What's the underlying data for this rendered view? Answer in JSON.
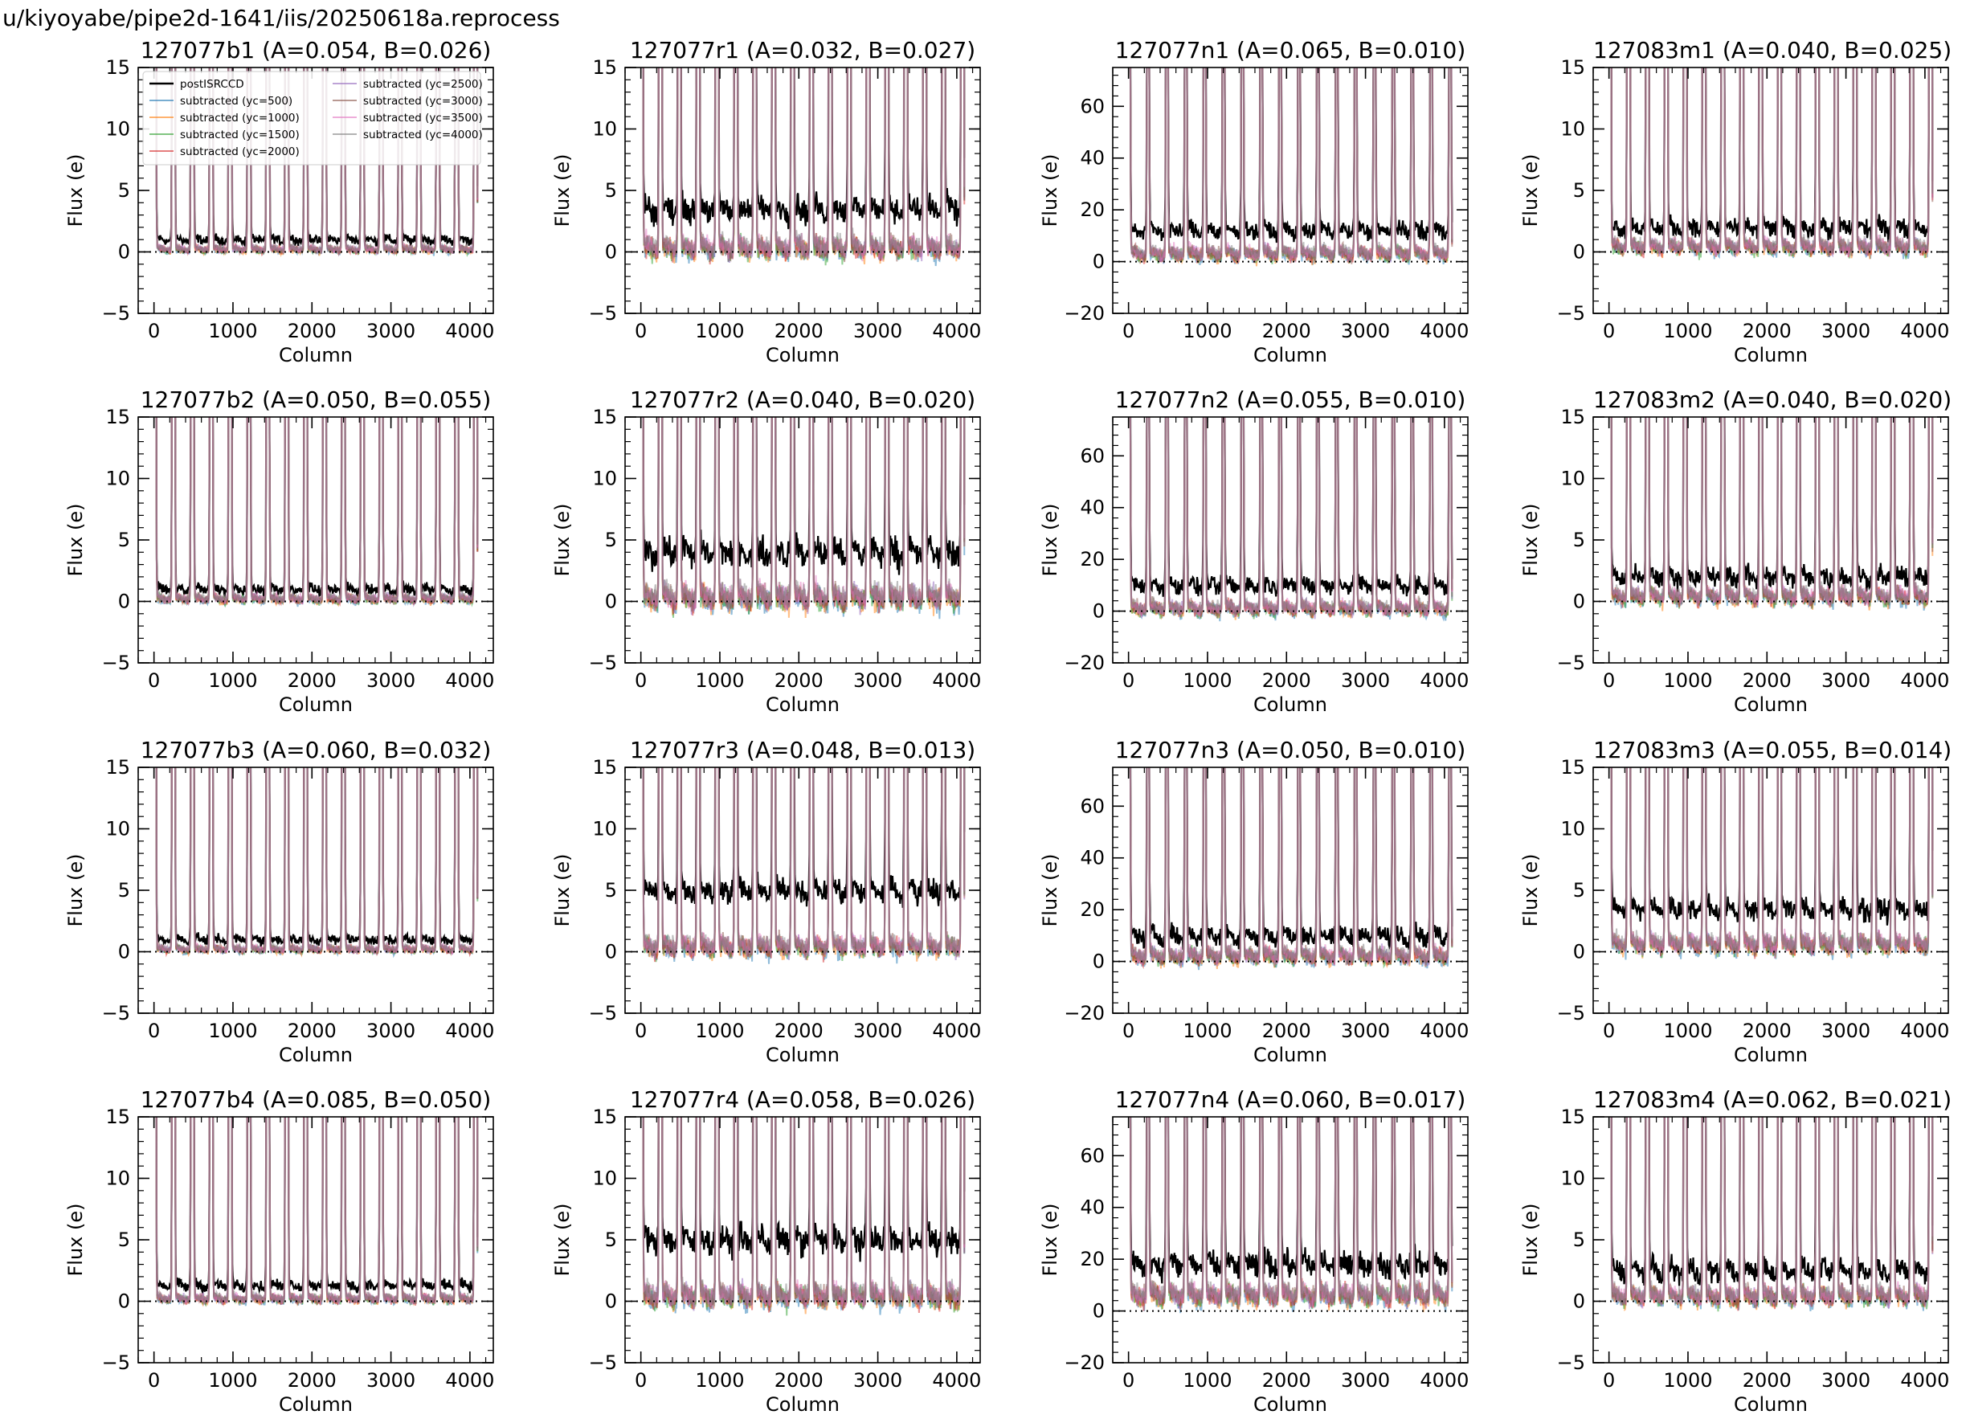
{
  "suptitle": "u/kiyoyabe/pipe2d-1641/iis/20250618a.reprocess",
  "common": {
    "xlabel": "Column",
    "ylabel": "Flux (e)",
    "xticks": [
      0,
      1000,
      2000,
      3000,
      4000
    ],
    "xlim": [
      -200,
      4296
    ]
  },
  "legend": {
    "placement": "upper-left",
    "entries": [
      {
        "label": "postISRCCD",
        "color": "#000000"
      },
      {
        "label": "subtracted (yc=500)",
        "color": "#1f77b4"
      },
      {
        "label": "subtracted (yc=1000)",
        "color": "#ff7f0e"
      },
      {
        "label": "subtracted (yc=1500)",
        "color": "#2ca02c"
      },
      {
        "label": "subtracted (yc=2000)",
        "color": "#d62728"
      },
      {
        "label": "subtracted (yc=2500)",
        "color": "#9467bd"
      },
      {
        "label": "subtracted (yc=3000)",
        "color": "#8c564b"
      },
      {
        "label": "subtracted (yc=3500)",
        "color": "#e377c2"
      },
      {
        "label": "subtracted (yc=4000)",
        "color": "#7f7f7f"
      }
    ]
  },
  "chart_data": [
    {
      "type": "line",
      "title": "127077b1 (A=0.054, B=0.026)",
      "ylim": [
        -5,
        15
      ],
      "yticks": [
        -5,
        0,
        5,
        10,
        15
      ],
      "baseline": 1.0,
      "sub_level": 0.2,
      "noise": 0.5,
      "legend": true
    },
    {
      "type": "line",
      "title": "127077r1 (A=0.032, B=0.027)",
      "ylim": [
        -5,
        15
      ],
      "yticks": [
        -5,
        0,
        5,
        10,
        15
      ],
      "baseline": 3.5,
      "sub_level": 0.3,
      "noise": 1.4
    },
    {
      "type": "line",
      "title": "127077n1 (A=0.065, B=0.010)",
      "ylim": [
        -20,
        75
      ],
      "yticks": [
        -20,
        0,
        20,
        40,
        60
      ],
      "baseline": 12,
      "sub_level": 3,
      "noise": 4.5
    },
    {
      "type": "line",
      "title": "127083m1 (A=0.040, B=0.025)",
      "ylim": [
        -5,
        15
      ],
      "yticks": [
        -5,
        0,
        5,
        10,
        15
      ],
      "baseline": 2.0,
      "sub_level": 0.4,
      "noise": 1.0
    },
    {
      "type": "line",
      "title": "127077b2 (A=0.050, B=0.055)",
      "ylim": [
        -5,
        15
      ],
      "yticks": [
        -5,
        0,
        5,
        10,
        15
      ],
      "baseline": 1.0,
      "sub_level": 0.2,
      "noise": 0.6
    },
    {
      "type": "line",
      "title": "127077r2 (A=0.040, B=0.020)",
      "ylim": [
        -5,
        15
      ],
      "yticks": [
        -5,
        0,
        5,
        10,
        15
      ],
      "baseline": 4.0,
      "sub_level": 0.3,
      "noise": 1.6
    },
    {
      "type": "line",
      "title": "127077n2 (A=0.055, B=0.010)",
      "ylim": [
        -20,
        75
      ],
      "yticks": [
        -20,
        0,
        20,
        40,
        60
      ],
      "baseline": 10,
      "sub_level": 1,
      "noise": 4.5
    },
    {
      "type": "line",
      "title": "127083m2 (A=0.040, B=0.020)",
      "ylim": [
        -5,
        15
      ],
      "yticks": [
        -5,
        0,
        5,
        10,
        15
      ],
      "baseline": 2.0,
      "sub_level": 0.4,
      "noise": 1.1
    },
    {
      "type": "line",
      "title": "127077b3 (A=0.060, B=0.032)",
      "ylim": [
        -5,
        15
      ],
      "yticks": [
        -5,
        0,
        5,
        10,
        15
      ],
      "baseline": 1.0,
      "sub_level": 0.2,
      "noise": 0.5
    },
    {
      "type": "line",
      "title": "127077r3 (A=0.048, B=0.013)",
      "ylim": [
        -5,
        15
      ],
      "yticks": [
        -5,
        0,
        5,
        10,
        15
      ],
      "baseline": 5.0,
      "sub_level": 0.4,
      "noise": 1.3
    },
    {
      "type": "line",
      "title": "127077n3 (A=0.050, B=0.010)",
      "ylim": [
        -20,
        75
      ],
      "yticks": [
        -20,
        0,
        20,
        40,
        60
      ],
      "baseline": 10,
      "sub_level": 2,
      "noise": 5.0
    },
    {
      "type": "line",
      "title": "127083m3 (A=0.055, B=0.014)",
      "ylim": [
        -5,
        15
      ],
      "yticks": [
        -5,
        0,
        5,
        10,
        15
      ],
      "baseline": 3.5,
      "sub_level": 0.6,
      "noise": 1.2
    },
    {
      "type": "line",
      "title": "127077b4 (A=0.085, B=0.050)",
      "ylim": [
        -5,
        15
      ],
      "yticks": [
        -5,
        0,
        5,
        10,
        15
      ],
      "baseline": 1.3,
      "sub_level": 0.2,
      "noise": 0.6
    },
    {
      "type": "line",
      "title": "127077r4 (A=0.058, B=0.026)",
      "ylim": [
        -5,
        15
      ],
      "yticks": [
        -5,
        0,
        5,
        10,
        15
      ],
      "baseline": 5.0,
      "sub_level": 0.4,
      "noise": 1.5
    },
    {
      "type": "line",
      "title": "127077n4 (A=0.060, B=0.017)",
      "ylim": [
        -20,
        75
      ],
      "yticks": [
        -20,
        0,
        20,
        40,
        60
      ],
      "baseline": 18,
      "sub_level": 6,
      "noise": 6.5
    },
    {
      "type": "line",
      "title": "127083m4 (A=0.062, B=0.021)",
      "ylim": [
        -5,
        15
      ],
      "yticks": [
        -5,
        0,
        5,
        10,
        15
      ],
      "baseline": 2.5,
      "sub_level": 0.4,
      "noise": 1.2
    }
  ]
}
